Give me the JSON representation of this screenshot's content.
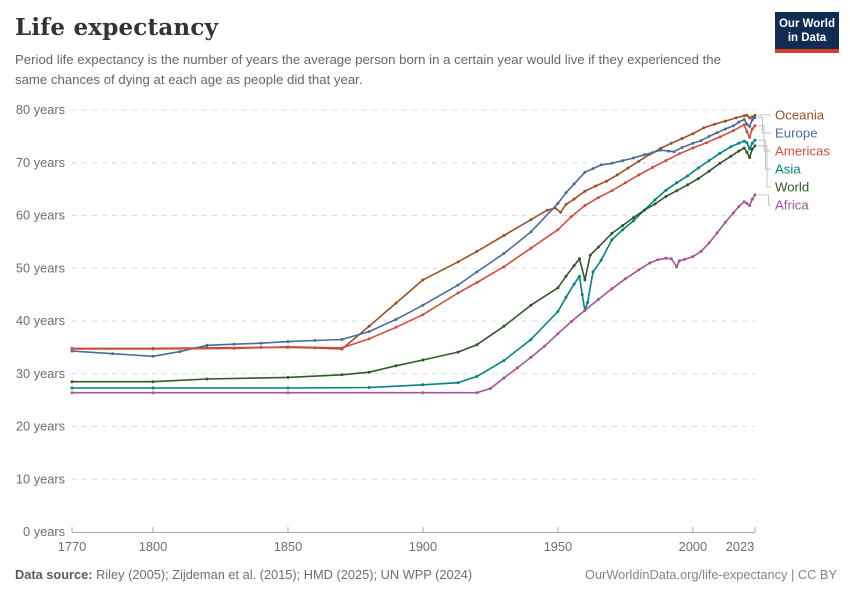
{
  "header": {
    "title": "Life expectancy",
    "subtitle": "Period life expectancy is the number of years the average person born in a certain year would live if they experienced the same chances of dying at each age as people did that year.",
    "logo": {
      "line1": "Our World",
      "line2": "in Data"
    }
  },
  "footer": {
    "source_label": "Data source:",
    "source_text": " Riley (2005); Zijdeman et al. (2015); HMD (2025); UN WPP (2024)",
    "link_text": "OurWorldinData.org/life-expectancy | CC BY"
  },
  "colors": {
    "grid": "#dcdcdc",
    "axis": "#a8a8a8",
    "tick_label": "#6e6e6e",
    "legend_connector": "#c4c4c4",
    "logo_bg": "#122B52",
    "logo_accent": "#D0402C"
  },
  "chart_data": {
    "type": "line",
    "title": "Life expectancy",
    "xlabel": "",
    "ylabel": "years",
    "x_domain": [
      1770,
      2023
    ],
    "y_domain": [
      0,
      80
    ],
    "x_ticks": [
      1770,
      1800,
      1850,
      1900,
      1950,
      2000,
      2023
    ],
    "y_ticks": [
      0,
      10,
      20,
      30,
      40,
      50,
      60,
      70,
      80
    ],
    "y_tick_suffix": " years",
    "grid": "horizontal-dashed",
    "legend_position": "right",
    "series": [
      {
        "name": "Oceania",
        "color": "#9A5129",
        "points": [
          [
            1770,
            34.8
          ],
          [
            1800,
            34.8
          ],
          [
            1820,
            34.9
          ],
          [
            1840,
            35.0
          ],
          [
            1850,
            35.0
          ],
          [
            1860,
            34.9
          ],
          [
            1870,
            34.7
          ],
          [
            1880,
            39.0
          ],
          [
            1890,
            43.4
          ],
          [
            1900,
            47.8
          ],
          [
            1913,
            51.2
          ],
          [
            1920,
            53.2
          ],
          [
            1930,
            56.2
          ],
          [
            1940,
            59.2
          ],
          [
            1946,
            61.0
          ],
          [
            1949,
            61.4
          ],
          [
            1951,
            60.6
          ],
          [
            1953,
            62.1
          ],
          [
            1956,
            63.1
          ],
          [
            1960,
            64.6
          ],
          [
            1964,
            65.6
          ],
          [
            1968,
            66.5
          ],
          [
            1972,
            67.7
          ],
          [
            1976,
            69.0
          ],
          [
            1980,
            70.3
          ],
          [
            1984,
            71.6
          ],
          [
            1988,
            72.7
          ],
          [
            1992,
            73.7
          ],
          [
            1996,
            74.6
          ],
          [
            2000,
            75.5
          ],
          [
            2004,
            76.6
          ],
          [
            2008,
            77.3
          ],
          [
            2012,
            77.9
          ],
          [
            2016,
            78.5
          ],
          [
            2019,
            78.9
          ],
          [
            2020,
            79.0
          ],
          [
            2021,
            78.5
          ],
          [
            2022,
            78.7
          ],
          [
            2023,
            79.0
          ]
        ]
      },
      {
        "name": "Europe",
        "color": "#4C6A9C",
        "points": [
          [
            1770,
            34.3
          ],
          [
            1785,
            33.8
          ],
          [
            1800,
            33.3
          ],
          [
            1810,
            34.2
          ],
          [
            1820,
            35.4
          ],
          [
            1830,
            35.6
          ],
          [
            1840,
            35.8
          ],
          [
            1850,
            36.1
          ],
          [
            1860,
            36.3
          ],
          [
            1870,
            36.5
          ],
          [
            1880,
            38.0
          ],
          [
            1890,
            40.3
          ],
          [
            1900,
            43.0
          ],
          [
            1913,
            46.8
          ],
          [
            1920,
            49.3
          ],
          [
            1930,
            52.8
          ],
          [
            1940,
            56.9
          ],
          [
            1950,
            62.3
          ],
          [
            1953,
            64.3
          ],
          [
            1956,
            66.0
          ],
          [
            1960,
            68.2
          ],
          [
            1963,
            68.9
          ],
          [
            1966,
            69.6
          ],
          [
            1970,
            69.9
          ],
          [
            1974,
            70.4
          ],
          [
            1978,
            70.9
          ],
          [
            1982,
            71.5
          ],
          [
            1985,
            71.9
          ],
          [
            1988,
            72.4
          ],
          [
            1991,
            72.2
          ],
          [
            1993,
            72.1
          ],
          [
            1996,
            72.9
          ],
          [
            2000,
            73.7
          ],
          [
            2003,
            74.2
          ],
          [
            2006,
            75.0
          ],
          [
            2009,
            75.7
          ],
          [
            2012,
            76.4
          ],
          [
            2015,
            77.0
          ],
          [
            2017,
            77.7
          ],
          [
            2019,
            78.2
          ],
          [
            2020,
            77.3
          ],
          [
            2021,
            76.9
          ],
          [
            2022,
            78.1
          ],
          [
            2023,
            78.6
          ]
        ]
      },
      {
        "name": "Americas",
        "color": "#D14E41",
        "points": [
          [
            1770,
            34.7
          ],
          [
            1800,
            34.7
          ],
          [
            1830,
            34.8
          ],
          [
            1850,
            35.1
          ],
          [
            1870,
            34.9
          ],
          [
            1880,
            36.6
          ],
          [
            1890,
            38.8
          ],
          [
            1900,
            41.2
          ],
          [
            1913,
            45.3
          ],
          [
            1920,
            47.3
          ],
          [
            1930,
            50.3
          ],
          [
            1940,
            53.8
          ],
          [
            1950,
            57.3
          ],
          [
            1955,
            59.8
          ],
          [
            1960,
            61.9
          ],
          [
            1965,
            63.4
          ],
          [
            1970,
            64.7
          ],
          [
            1975,
            66.2
          ],
          [
            1980,
            67.7
          ],
          [
            1985,
            69.1
          ],
          [
            1990,
            70.4
          ],
          [
            1995,
            71.7
          ],
          [
            2000,
            72.8
          ],
          [
            2005,
            73.8
          ],
          [
            2010,
            74.9
          ],
          [
            2015,
            76.1
          ],
          [
            2019,
            77.2
          ],
          [
            2020,
            75.9
          ],
          [
            2021,
            74.8
          ],
          [
            2022,
            76.4
          ],
          [
            2023,
            77.0
          ]
        ]
      },
      {
        "name": "Asia",
        "color": "#00847E",
        "points": [
          [
            1770,
            27.3
          ],
          [
            1800,
            27.3
          ],
          [
            1850,
            27.3
          ],
          [
            1880,
            27.4
          ],
          [
            1900,
            27.9
          ],
          [
            1913,
            28.3
          ],
          [
            1920,
            29.5
          ],
          [
            1930,
            32.5
          ],
          [
            1940,
            36.5
          ],
          [
            1950,
            41.8
          ],
          [
            1953,
            44.5
          ],
          [
            1956,
            47.0
          ],
          [
            1958,
            48.5
          ],
          [
            1959,
            45.0
          ],
          [
            1960,
            42.0
          ],
          [
            1961,
            43.5
          ],
          [
            1963,
            49.3
          ],
          [
            1966,
            51.5
          ],
          [
            1970,
            55.4
          ],
          [
            1974,
            57.3
          ],
          [
            1978,
            59.0
          ],
          [
            1982,
            61.0
          ],
          [
            1986,
            63.0
          ],
          [
            1990,
            64.8
          ],
          [
            1994,
            66.2
          ],
          [
            1998,
            67.5
          ],
          [
            2002,
            69.0
          ],
          [
            2006,
            70.4
          ],
          [
            2010,
            71.8
          ],
          [
            2014,
            73.0
          ],
          [
            2017,
            73.7
          ],
          [
            2019,
            74.1
          ],
          [
            2020,
            73.8
          ],
          [
            2021,
            72.6
          ],
          [
            2022,
            73.7
          ],
          [
            2023,
            74.3
          ]
        ]
      },
      {
        "name": "World",
        "color": "#33582D",
        "points": [
          [
            1770,
            28.5
          ],
          [
            1800,
            28.5
          ],
          [
            1820,
            29.0
          ],
          [
            1850,
            29.3
          ],
          [
            1870,
            29.8
          ],
          [
            1880,
            30.3
          ],
          [
            1890,
            31.5
          ],
          [
            1900,
            32.6
          ],
          [
            1913,
            34.1
          ],
          [
            1920,
            35.5
          ],
          [
            1930,
            39.0
          ],
          [
            1940,
            43.0
          ],
          [
            1950,
            46.3
          ],
          [
            1953,
            48.5
          ],
          [
            1956,
            50.5
          ],
          [
            1958,
            51.8
          ],
          [
            1960,
            47.8
          ],
          [
            1962,
            52.5
          ],
          [
            1965,
            54.0
          ],
          [
            1970,
            56.6
          ],
          [
            1974,
            58.1
          ],
          [
            1978,
            59.6
          ],
          [
            1982,
            61.0
          ],
          [
            1986,
            62.2
          ],
          [
            1990,
            63.6
          ],
          [
            1994,
            64.7
          ],
          [
            1998,
            65.8
          ],
          [
            2002,
            67.0
          ],
          [
            2006,
            68.4
          ],
          [
            2010,
            69.9
          ],
          [
            2014,
            71.2
          ],
          [
            2017,
            72.2
          ],
          [
            2019,
            72.8
          ],
          [
            2020,
            72.0
          ],
          [
            2021,
            71.0
          ],
          [
            2022,
            72.6
          ],
          [
            2023,
            73.2
          ]
        ]
      },
      {
        "name": "Africa",
        "color": "#A2559C",
        "points": [
          [
            1770,
            26.4
          ],
          [
            1800,
            26.4
          ],
          [
            1850,
            26.4
          ],
          [
            1900,
            26.4
          ],
          [
            1920,
            26.4
          ],
          [
            1925,
            27.2
          ],
          [
            1930,
            29.2
          ],
          [
            1935,
            31.1
          ],
          [
            1940,
            33.1
          ],
          [
            1945,
            35.2
          ],
          [
            1950,
            37.6
          ],
          [
            1955,
            39.9
          ],
          [
            1960,
            42.0
          ],
          [
            1965,
            44.1
          ],
          [
            1970,
            46.1
          ],
          [
            1975,
            48.0
          ],
          [
            1980,
            49.7
          ],
          [
            1984,
            51.0
          ],
          [
            1987,
            51.6
          ],
          [
            1990,
            51.9
          ],
          [
            1992,
            51.8
          ],
          [
            1994,
            50.3
          ],
          [
            1995,
            51.4
          ],
          [
            1997,
            51.7
          ],
          [
            2000,
            52.2
          ],
          [
            2003,
            53.2
          ],
          [
            2006,
            54.8
          ],
          [
            2009,
            56.7
          ],
          [
            2012,
            58.7
          ],
          [
            2015,
            60.5
          ],
          [
            2017,
            61.7
          ],
          [
            2019,
            62.6
          ],
          [
            2020,
            62.3
          ],
          [
            2021,
            61.9
          ],
          [
            2022,
            63.1
          ],
          [
            2023,
            63.9
          ]
        ]
      }
    ]
  }
}
